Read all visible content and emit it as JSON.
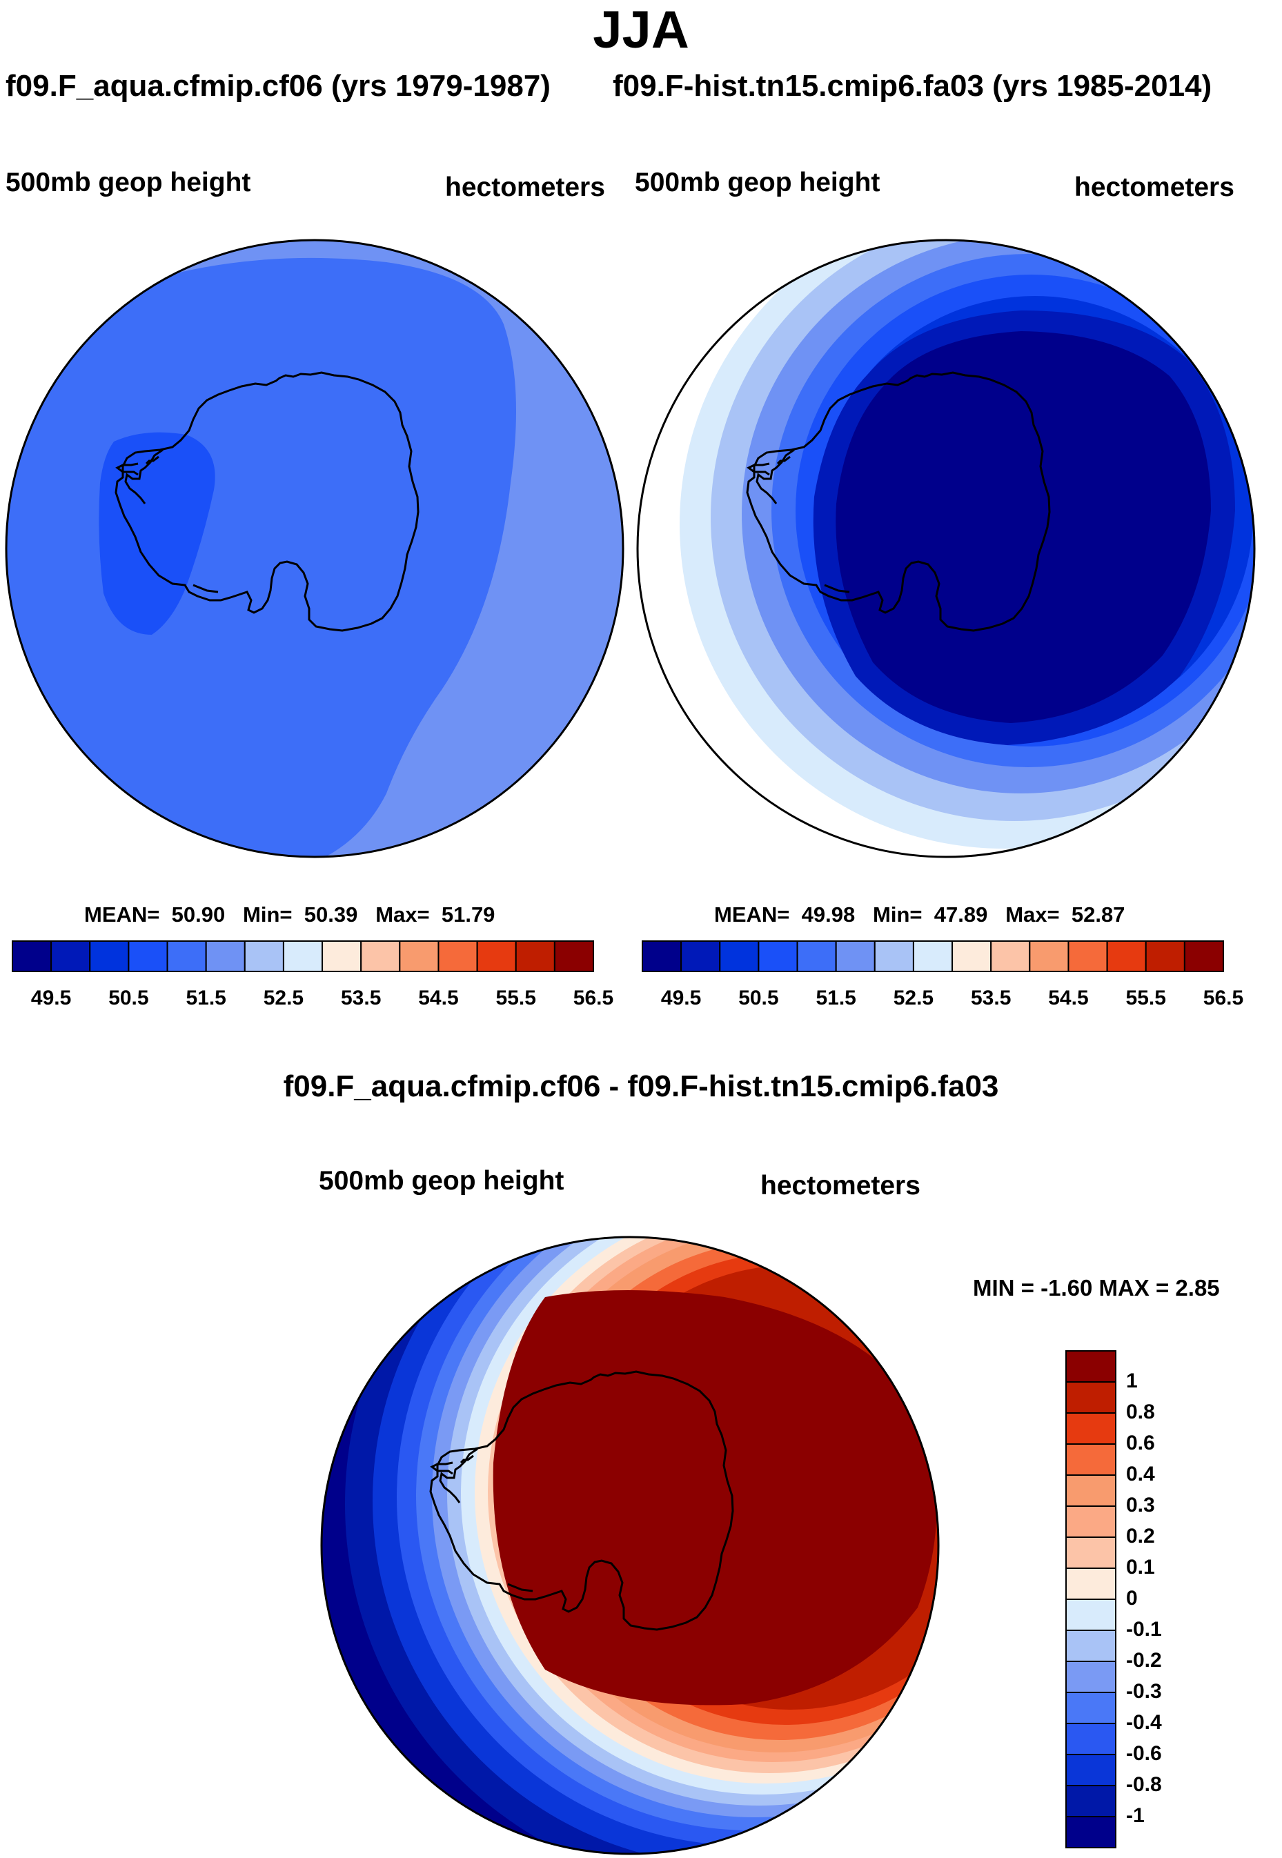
{
  "title": "JJA",
  "panels": [
    {
      "case": "f09.F_aqua.cfmip.cf06 (yrs 1979-1987)",
      "variable": "500mb geop height",
      "units": "hectometers",
      "mean_label": "MEAN=",
      "mean": "50.90",
      "min_label": "Min=",
      "min": "50.39",
      "max_label": "Max=",
      "max": "51.79"
    },
    {
      "case": "f09.F-hist.tn15.cmip6.fa03 (yrs 1985-2014)",
      "variable": "500mb geop height",
      "units": "hectometers",
      "mean_label": "MEAN=",
      "mean": "49.98",
      "min_label": "Min=",
      "min": "47.89",
      "max_label": "Max=",
      "max": "52.87"
    }
  ],
  "colorbar_top": {
    "colors": [
      "#00008b",
      "#0019b8",
      "#0033dd",
      "#1a50f8",
      "#3d6ef8",
      "#6f92f4",
      "#a9c3f6",
      "#d8ebfc",
      "#fdebdc",
      "#fcc4a8",
      "#f89b6e",
      "#f56a3a",
      "#e63a10",
      "#bf1e00",
      "#8b0000"
    ],
    "tick_labels": [
      "49.5",
      "50.5",
      "51.5",
      "52.5",
      "53.5",
      "54.5",
      "55.5",
      "56.5"
    ]
  },
  "diff": {
    "title": "f09.F_aqua.cfmip.cf06 - f09.F-hist.tn15.cmip6.fa03",
    "variable": "500mb geop height",
    "units": "hectometers",
    "minmax_label": "MIN =  -1.60 MAX =   2.85",
    "colorbar_colors": [
      "#8b0000",
      "#bf1e00",
      "#e63a10",
      "#f56a3a",
      "#f89b6e",
      "#fba985",
      "#fcc4a8",
      "#fdebdc",
      "#d8ebfc",
      "#a9c3f6",
      "#7a9af4",
      "#4a78f7",
      "#2a58f2",
      "#0a36d8",
      "#0018a8",
      "#00008b"
    ],
    "colorbar_labels": [
      "1",
      "0.8",
      "0.6",
      "0.4",
      "0.3",
      "0.2",
      "0.1",
      "0",
      "-0.1",
      "-0.2",
      "-0.3",
      "-0.4",
      "-0.6",
      "-0.8",
      "-1"
    ]
  }
}
